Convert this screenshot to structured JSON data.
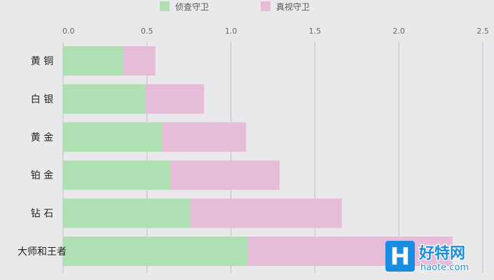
{
  "chart_data": {
    "type": "bar",
    "orientation": "horizontal",
    "stacked": true,
    "categories": [
      "黄 铜",
      "白 银",
      "黄 金",
      "铂 金",
      "钻 石",
      "大师和王者"
    ],
    "series": [
      {
        "name": "侦查守卫",
        "values": [
          0.36,
          0.49,
          0.59,
          0.64,
          0.76,
          1.1
        ]
      },
      {
        "name": "真视守卫",
        "values": [
          0.19,
          0.35,
          0.5,
          0.65,
          0.9,
          1.22
        ]
      }
    ],
    "xlim": [
      0,
      2.5
    ],
    "xticks": [
      0.0,
      0.5,
      1.0,
      1.5,
      2.0,
      2.5
    ],
    "xtick_labels": [
      "0.0",
      "0.5",
      "1.0",
      "1.5",
      "2.0",
      "2.5"
    ],
    "grid": "vertical",
    "legend_position": "top-center",
    "colors": {
      "侦查守卫": "#aee0b4",
      "真视守卫": "#e6bcd9"
    }
  },
  "watermark": {
    "logo_letter": "H",
    "brand": "好特网",
    "url": "haote.com",
    "colors": {
      "primary": "#1a8de0",
      "light": "#ffffff"
    }
  }
}
